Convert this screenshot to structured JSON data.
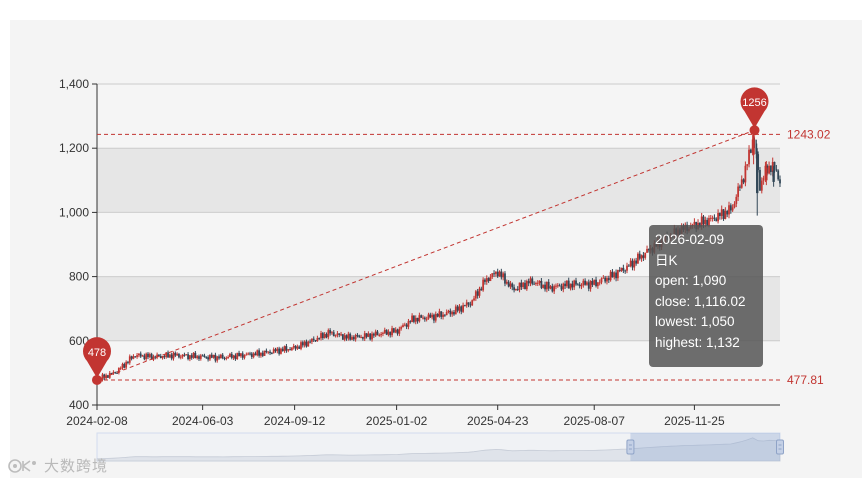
{
  "chart_data": {
    "type": "candlestick",
    "x_tick_labels": [
      "2024-02-08",
      "2024-06-03",
      "2024-09-12",
      "2025-01-02",
      "2025-04-23",
      "2025-08-07",
      "2025-11-25"
    ],
    "x_range": [
      "2024-02-08",
      "2026-02-27"
    ],
    "y_ticks": [
      400,
      600,
      800,
      1000,
      1200,
      1400
    ],
    "y_tick_labels": [
      "400",
      "600",
      "800",
      "1,000",
      "1,200",
      "1,400"
    ],
    "ylim": [
      400,
      1400
    ],
    "split_area": true,
    "grid": true,
    "colors": {
      "up": "#c23531",
      "down": "#314656",
      "mark": "#c23531"
    },
    "series": [
      {
        "values": [
          [
            "2024-02-08",
            478
          ],
          [
            "2024-03-01",
            505
          ],
          [
            "2024-03-20",
            555
          ],
          [
            "2024-04-10",
            550
          ],
          [
            "2024-05-01",
            555
          ],
          [
            "2024-06-03",
            550
          ],
          [
            "2024-06-25",
            548
          ],
          [
            "2024-07-15",
            555
          ],
          [
            "2024-08-05",
            560
          ],
          [
            "2024-08-25",
            570
          ],
          [
            "2024-09-12",
            578
          ],
          [
            "2024-10-01",
            600
          ],
          [
            "2024-10-20",
            625
          ],
          [
            "2024-11-10",
            610
          ],
          [
            "2024-12-01",
            615
          ],
          [
            "2024-12-20",
            625
          ],
          [
            "2025-01-02",
            630
          ],
          [
            "2025-01-20",
            668
          ],
          [
            "2025-02-10",
            675
          ],
          [
            "2025-03-05",
            690
          ],
          [
            "2025-03-25",
            720
          ],
          [
            "2025-04-10",
            790
          ],
          [
            "2025-04-23",
            815
          ],
          [
            "2025-05-10",
            760
          ],
          [
            "2025-05-30",
            785
          ],
          [
            "2025-06-20",
            765
          ],
          [
            "2025-07-10",
            775
          ],
          [
            "2025-08-07",
            778
          ],
          [
            "2025-08-25",
            800
          ],
          [
            "2025-09-15",
            835
          ],
          [
            "2025-10-05",
            880
          ],
          [
            "2025-10-25",
            920
          ],
          [
            "2025-11-10",
            945
          ],
          [
            "2025-11-25",
            960
          ],
          [
            "2025-12-15",
            980
          ],
          [
            "2026-01-05",
            1010
          ],
          [
            "2026-01-20",
            1130
          ],
          [
            "2026-01-29",
            1240
          ],
          [
            "2026-02-05",
            1080
          ],
          [
            "2026-02-09",
            1116.02
          ],
          [
            "2026-02-18",
            1150
          ],
          [
            "2026-02-27",
            1100
          ]
        ]
      }
    ],
    "mark_points": [
      {
        "label": "1256",
        "date": "2026-01-30",
        "value": 1256
      },
      {
        "label": "478",
        "date": "2024-02-08",
        "value": 478
      }
    ],
    "mark_lines": [
      {
        "label": "1243.02",
        "value": 1243.02
      },
      {
        "label": "477.81",
        "value": 477.81
      }
    ],
    "tooltip": {
      "date": "2026-02-09",
      "series": "日K",
      "open_label": "open: 1,090",
      "close_label": "close: 1,116.02",
      "lowest_label": "lowest: 1,050",
      "highest_label": "highest: 1,132"
    }
  },
  "watermark": {
    "text": "大数跨境"
  }
}
